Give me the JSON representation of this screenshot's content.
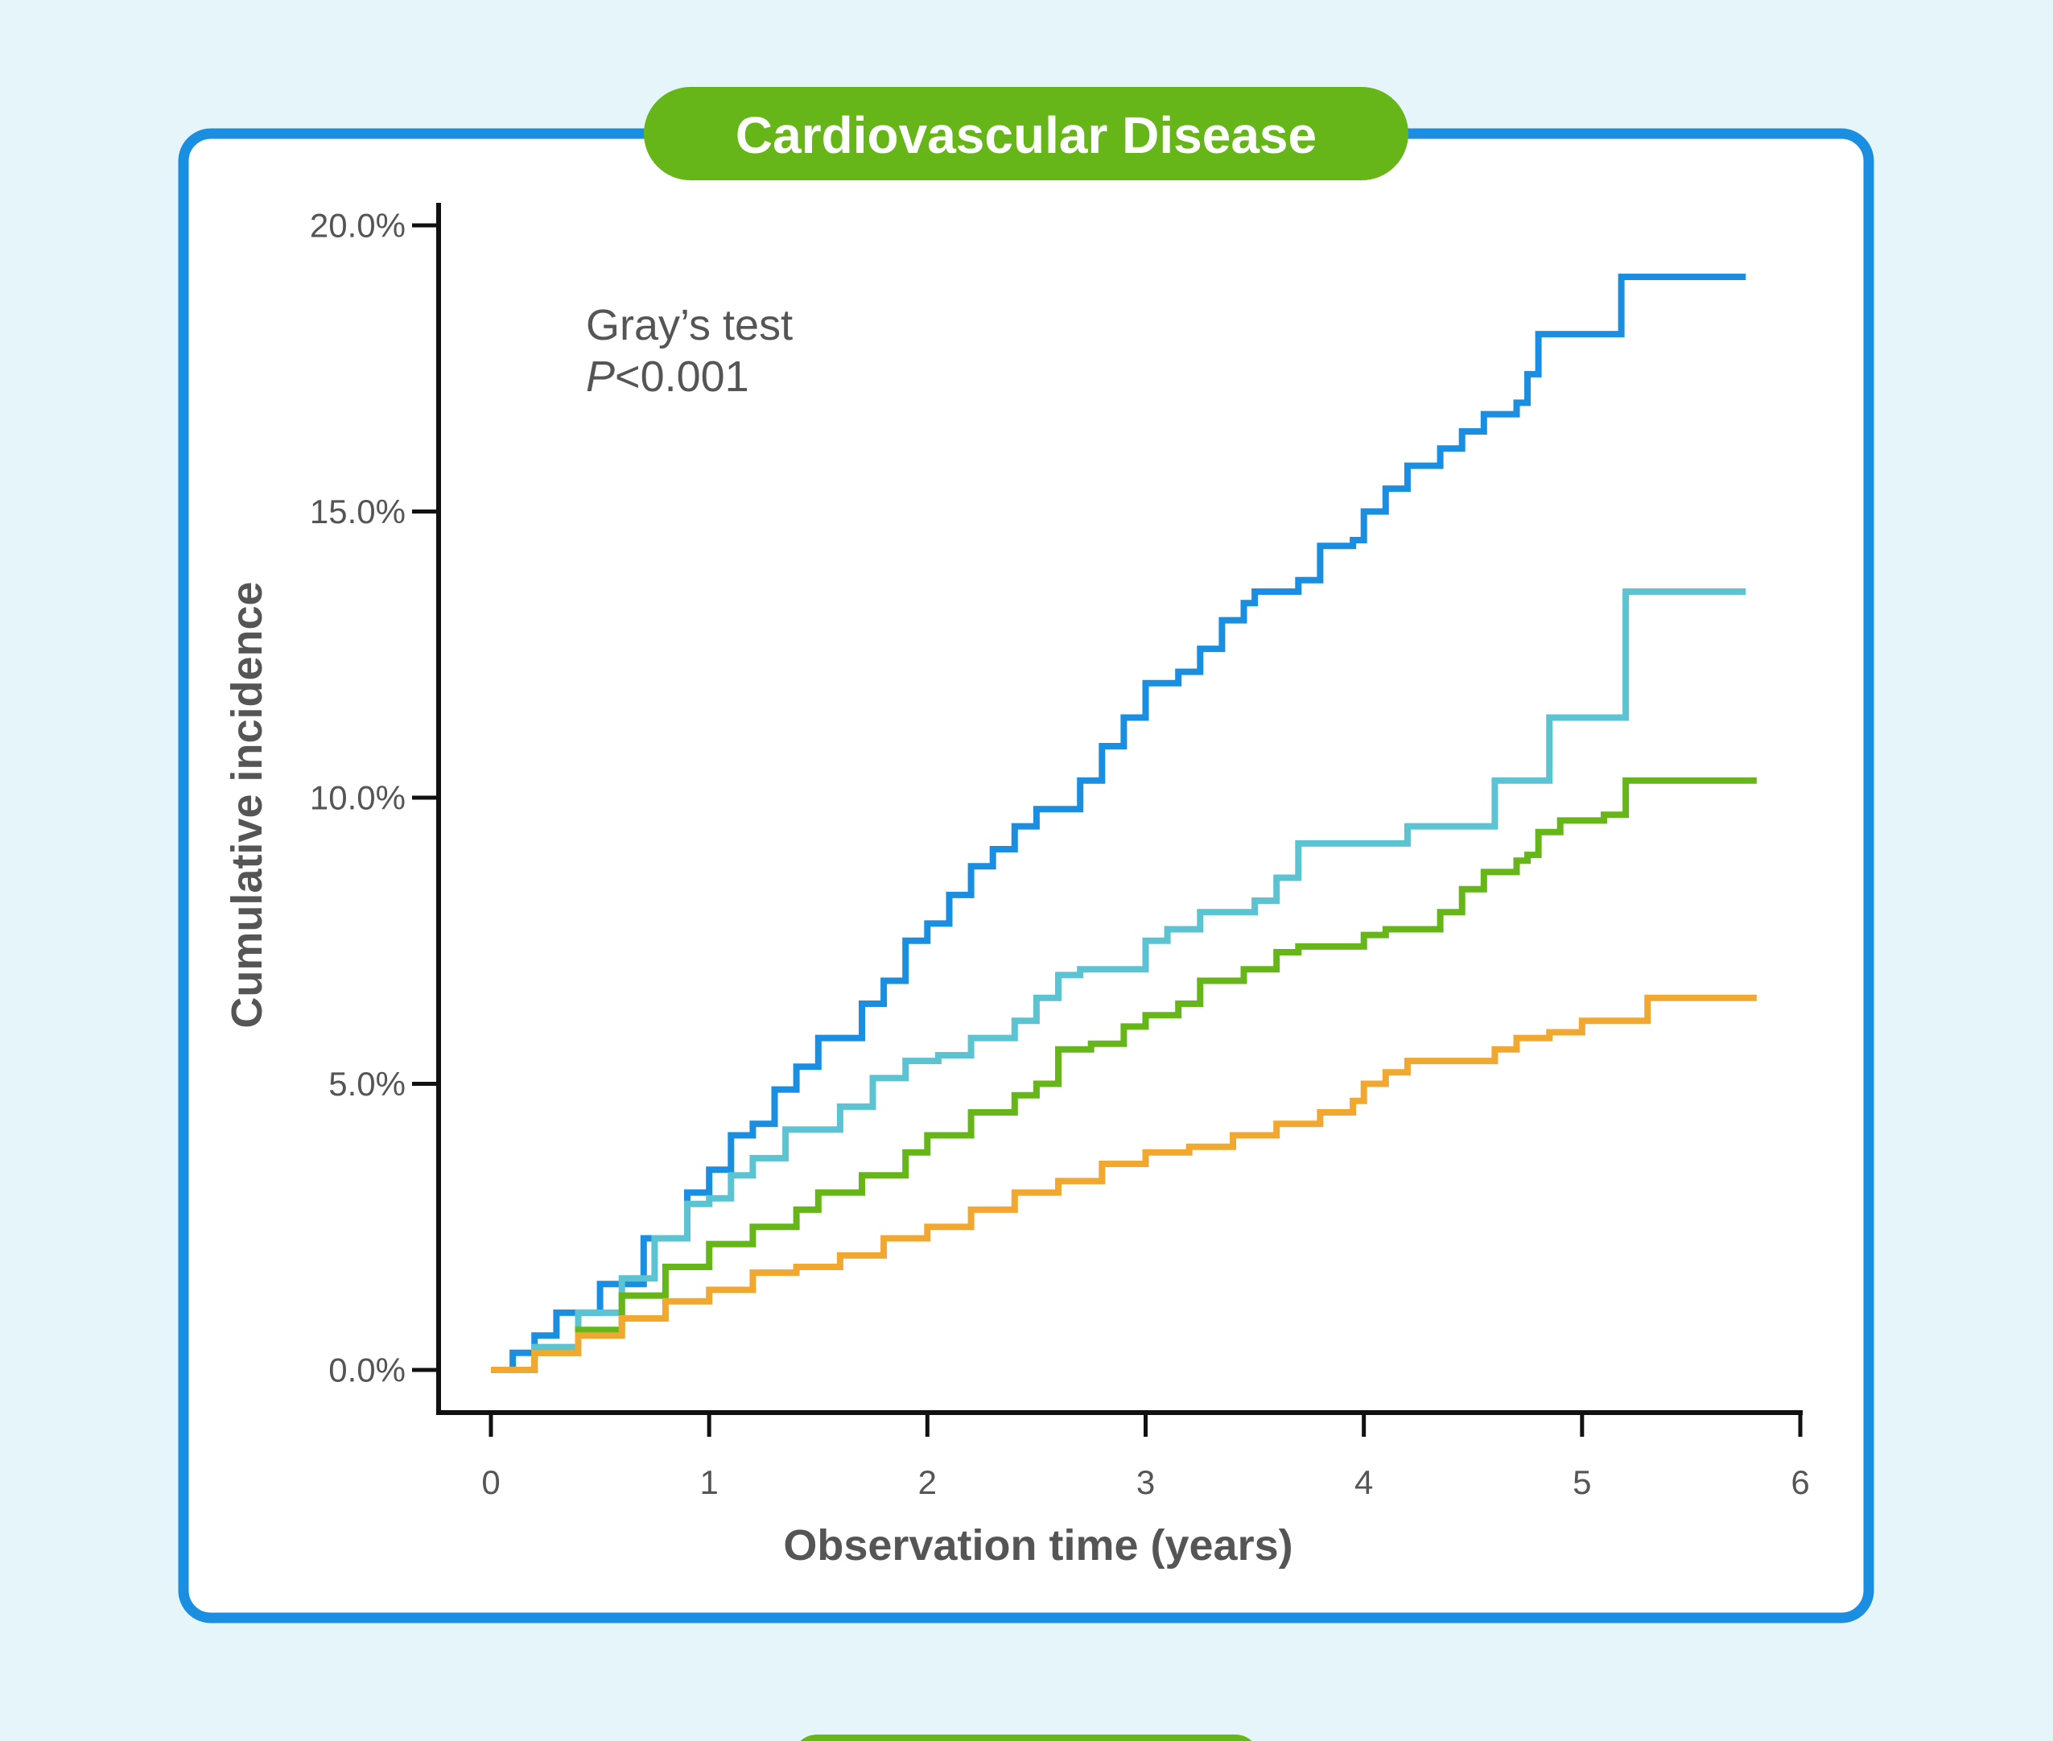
{
  "chart_data": {
    "type": "line",
    "title": "Cardiovascular Disease",
    "xlabel": "Observation time (years)",
    "ylabel": "Cumulative incidence",
    "xlim": [
      0,
      6
    ],
    "ylim": [
      0,
      20
    ],
    "x_ticks": [
      "0",
      "1",
      "2",
      "3",
      "4",
      "5",
      "6"
    ],
    "y_ticks": [
      "0.0%",
      "5.0%",
      "10.0%",
      "15.0%",
      "20.0%"
    ],
    "annotation": {
      "line1": "Gray’s test",
      "p_symbol": "P",
      "p_rest": "<0.001"
    },
    "colors": {
      "frame": "#1a8ee0",
      "title_bg": "#66b519",
      "background": "#e6f5fa",
      "panel": "#ffffff",
      "axis": "#111111"
    },
    "series": [
      {
        "color": "#1a8ee0",
        "points": [
          [
            0,
            0
          ],
          [
            0.1,
            0.3
          ],
          [
            0.2,
            0.6
          ],
          [
            0.3,
            1.0
          ],
          [
            0.5,
            1.5
          ],
          [
            0.7,
            2.3
          ],
          [
            0.9,
            3.1
          ],
          [
            1.0,
            3.5
          ],
          [
            1.1,
            4.1
          ],
          [
            1.2,
            4.3
          ],
          [
            1.3,
            4.9
          ],
          [
            1.4,
            5.3
          ],
          [
            1.5,
            5.8
          ],
          [
            1.7,
            6.4
          ],
          [
            1.8,
            6.8
          ],
          [
            1.9,
            7.5
          ],
          [
            2.0,
            7.8
          ],
          [
            2.1,
            8.3
          ],
          [
            2.2,
            8.8
          ],
          [
            2.3,
            9.1
          ],
          [
            2.4,
            9.5
          ],
          [
            2.5,
            9.8
          ],
          [
            2.65,
            9.8
          ],
          [
            2.7,
            10.3
          ],
          [
            2.8,
            10.9
          ],
          [
            2.9,
            11.4
          ],
          [
            3.0,
            12.0
          ],
          [
            3.15,
            12.2
          ],
          [
            3.25,
            12.6
          ],
          [
            3.35,
            13.1
          ],
          [
            3.45,
            13.4
          ],
          [
            3.5,
            13.6
          ],
          [
            3.7,
            13.8
          ],
          [
            3.8,
            14.4
          ],
          [
            3.95,
            14.5
          ],
          [
            4.0,
            15.0
          ],
          [
            4.1,
            15.4
          ],
          [
            4.2,
            15.8
          ],
          [
            4.35,
            16.1
          ],
          [
            4.45,
            16.4
          ],
          [
            4.55,
            16.7
          ],
          [
            4.7,
            16.9
          ],
          [
            4.75,
            17.4
          ],
          [
            4.8,
            18.1
          ],
          [
            5.0,
            18.1
          ],
          [
            5.18,
            19.1
          ],
          [
            5.75,
            19.1
          ]
        ]
      },
      {
        "color": "#5bc3d2",
        "points": [
          [
            0,
            0
          ],
          [
            0.2,
            0.4
          ],
          [
            0.4,
            1.0
          ],
          [
            0.6,
            1.6
          ],
          [
            0.75,
            2.3
          ],
          [
            0.9,
            2.9
          ],
          [
            1.0,
            3.0
          ],
          [
            1.1,
            3.4
          ],
          [
            1.2,
            3.7
          ],
          [
            1.35,
            4.2
          ],
          [
            1.55,
            4.2
          ],
          [
            1.6,
            4.6
          ],
          [
            1.75,
            5.1
          ],
          [
            1.9,
            5.4
          ],
          [
            2.05,
            5.5
          ],
          [
            2.2,
            5.8
          ],
          [
            2.4,
            6.1
          ],
          [
            2.5,
            6.5
          ],
          [
            2.6,
            6.9
          ],
          [
            2.7,
            7.0
          ],
          [
            2.9,
            7.0
          ],
          [
            3.0,
            7.5
          ],
          [
            3.1,
            7.7
          ],
          [
            3.25,
            8.0
          ],
          [
            3.45,
            8.0
          ],
          [
            3.5,
            8.2
          ],
          [
            3.6,
            8.6
          ],
          [
            3.7,
            9.2
          ],
          [
            4.2,
            9.5
          ],
          [
            4.55,
            9.5
          ],
          [
            4.6,
            10.3
          ],
          [
            4.8,
            10.3
          ],
          [
            4.85,
            11.4
          ],
          [
            5.15,
            11.4
          ],
          [
            5.2,
            13.6
          ],
          [
            5.75,
            13.6
          ]
        ]
      },
      {
        "color": "#66b519",
        "points": [
          [
            0,
            0
          ],
          [
            0.2,
            0.3
          ],
          [
            0.4,
            0.7
          ],
          [
            0.6,
            1.3
          ],
          [
            0.8,
            1.8
          ],
          [
            1.0,
            2.2
          ],
          [
            1.2,
            2.5
          ],
          [
            1.4,
            2.8
          ],
          [
            1.5,
            3.1
          ],
          [
            1.7,
            3.4
          ],
          [
            1.9,
            3.8
          ],
          [
            2.0,
            4.1
          ],
          [
            2.2,
            4.5
          ],
          [
            2.4,
            4.8
          ],
          [
            2.5,
            5.0
          ],
          [
            2.6,
            5.6
          ],
          [
            2.75,
            5.7
          ],
          [
            2.9,
            6.0
          ],
          [
            3.0,
            6.2
          ],
          [
            3.15,
            6.4
          ],
          [
            3.25,
            6.8
          ],
          [
            3.45,
            7.0
          ],
          [
            3.6,
            7.3
          ],
          [
            3.7,
            7.4
          ],
          [
            3.9,
            7.4
          ],
          [
            4.0,
            7.6
          ],
          [
            4.1,
            7.7
          ],
          [
            4.25,
            7.7
          ],
          [
            4.35,
            8.0
          ],
          [
            4.45,
            8.4
          ],
          [
            4.55,
            8.7
          ],
          [
            4.7,
            8.9
          ],
          [
            4.75,
            9.0
          ],
          [
            4.8,
            9.4
          ],
          [
            4.9,
            9.6
          ],
          [
            5.1,
            9.7
          ],
          [
            5.2,
            10.3
          ],
          [
            5.8,
            10.3
          ]
        ]
      },
      {
        "color": "#f0a830",
        "points": [
          [
            0,
            0
          ],
          [
            0.2,
            0.3
          ],
          [
            0.4,
            0.6
          ],
          [
            0.6,
            0.9
          ],
          [
            0.8,
            1.2
          ],
          [
            1.0,
            1.4
          ],
          [
            1.2,
            1.7
          ],
          [
            1.4,
            1.8
          ],
          [
            1.6,
            2.0
          ],
          [
            1.8,
            2.3
          ],
          [
            2.0,
            2.5
          ],
          [
            2.2,
            2.8
          ],
          [
            2.4,
            3.1
          ],
          [
            2.6,
            3.3
          ],
          [
            2.8,
            3.6
          ],
          [
            3.0,
            3.8
          ],
          [
            3.2,
            3.9
          ],
          [
            3.4,
            4.1
          ],
          [
            3.6,
            4.3
          ],
          [
            3.8,
            4.5
          ],
          [
            3.95,
            4.7
          ],
          [
            4.0,
            5.0
          ],
          [
            4.1,
            5.2
          ],
          [
            4.2,
            5.4
          ],
          [
            4.4,
            5.4
          ],
          [
            4.6,
            5.6
          ],
          [
            4.7,
            5.8
          ],
          [
            4.85,
            5.9
          ],
          [
            4.95,
            5.9
          ],
          [
            5.0,
            6.1
          ],
          [
            5.25,
            6.1
          ],
          [
            5.3,
            6.5
          ],
          [
            5.8,
            6.5
          ]
        ]
      }
    ]
  }
}
